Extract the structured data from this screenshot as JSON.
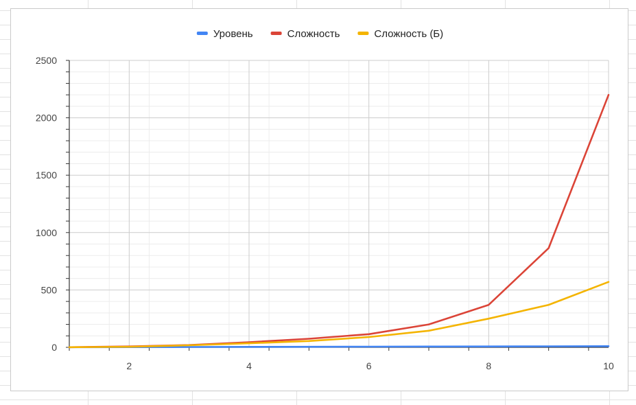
{
  "chart_data": {
    "type": "line",
    "title": "",
    "xlabel": "",
    "ylabel": "",
    "x": [
      1,
      2,
      3,
      4,
      5,
      6,
      7,
      8,
      9,
      10
    ],
    "xlim": [
      1,
      10
    ],
    "ylim": [
      0,
      2500
    ],
    "x_ticks": [
      "2",
      "4",
      "6",
      "8",
      "10"
    ],
    "y_ticks": [
      "0",
      "500",
      "1000",
      "1500",
      "2000",
      "2500"
    ],
    "legend_position": "top",
    "grid": true,
    "series": [
      {
        "name": "Уровень",
        "color": "#4285F4",
        "values": [
          1,
          2,
          3,
          4,
          5,
          6,
          7,
          8,
          9,
          10
        ]
      },
      {
        "name": "Сложность",
        "color": "#DB4437",
        "values": [
          1,
          8,
          20,
          45,
          75,
          115,
          200,
          370,
          865,
          2200
        ]
      },
      {
        "name": "Сложность (Б)",
        "color": "#F4B400",
        "values": [
          1,
          5,
          18,
          35,
          55,
          90,
          145,
          250,
          370,
          570
        ]
      }
    ]
  }
}
